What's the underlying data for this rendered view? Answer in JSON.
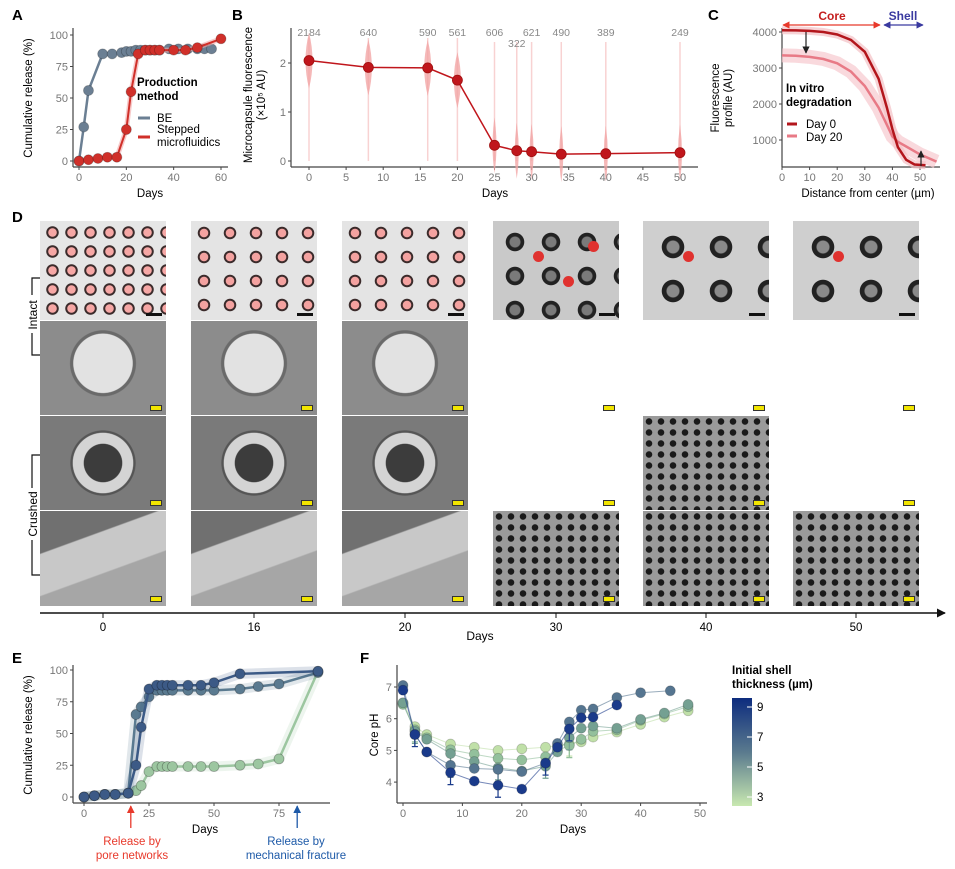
{
  "panels": {
    "A": "A",
    "B": "B",
    "C": "C",
    "D": "D",
    "E": "E",
    "F": "F"
  },
  "colors": {
    "be": "#6b7f93",
    "sm": "#d0302a",
    "sm_light": "#f2a6a6",
    "core": "#e8392b",
    "shell": "#3a3aa0",
    "day0": "#b3161c",
    "day20": "#e87a86",
    "pore": "#e8392b",
    "fracture": "#1e5aa8",
    "grad_top": "#0d2c7e",
    "grad_bottom": "#c8e8b0"
  },
  "chart_data": [
    {
      "id": "A",
      "type": "line",
      "xlabel": "Days",
      "ylabel": "Cumulative release (%)",
      "xlim": [
        0,
        60
      ],
      "ylim": [
        0,
        100
      ],
      "xticks": [
        0,
        20,
        40,
        60
      ],
      "yticks": [
        0,
        25,
        50,
        75,
        100
      ],
      "legend": {
        "title": [
          "Production",
          "method"
        ],
        "position": "right",
        "entries": [
          "BE",
          "Stepped",
          "microfluidics"
        ]
      },
      "series": [
        {
          "name": "BE",
          "x": [
            0,
            2,
            4,
            10,
            14,
            18,
            20,
            22,
            24,
            26,
            28,
            30,
            32,
            34,
            38,
            42,
            46,
            50,
            53,
            56
          ],
          "y": [
            0,
            27,
            56,
            85,
            85,
            86,
            87,
            87,
            88,
            88,
            88,
            88,
            88,
            88,
            89,
            89,
            89,
            89,
            89,
            89
          ]
        },
        {
          "name": "Stepped microfluidics",
          "x": [
            0,
            4,
            8,
            12,
            16,
            20,
            22,
            25,
            28,
            30,
            32,
            34,
            40,
            45,
            50,
            60
          ],
          "y": [
            0,
            1,
            2,
            3,
            3,
            25,
            55,
            85,
            88,
            88,
            88,
            88,
            88,
            88,
            90,
            97
          ]
        }
      ]
    },
    {
      "id": "B",
      "type": "line",
      "xlabel": "Days",
      "ylabel": [
        "Microcapsule fluorescence",
        "(×10⁵ AU)"
      ],
      "xlim": [
        0,
        50
      ],
      "ylim": [
        0,
        2.5
      ],
      "xticks": [
        0,
        5,
        10,
        15,
        20,
        25,
        30,
        35,
        40,
        45,
        50
      ],
      "yticks": [
        0,
        1,
        2
      ],
      "x": [
        0,
        8,
        16,
        20,
        25,
        28,
        30,
        34,
        40,
        50
      ],
      "y": [
        2.05,
        1.91,
        1.9,
        1.65,
        0.32,
        0.21,
        0.19,
        0.14,
        0.15,
        0.17
      ],
      "counts": [
        "2184",
        "640",
        "590",
        "561",
        "606",
        "322",
        "621",
        "490",
        "389",
        "249"
      ]
    },
    {
      "id": "C",
      "type": "line",
      "xlabel": "Distance from center (µm)",
      "ylabel": [
        "Fluorescence",
        "profile (AU)"
      ],
      "xlim": [
        0,
        56
      ],
      "ylim": [
        250,
        4200
      ],
      "xticks": [
        0,
        10,
        20,
        30,
        40,
        50
      ],
      "yticks": [
        1000,
        2000,
        3000,
        4000
      ],
      "annotations": {
        "core": "Core",
        "shell": "Shell"
      },
      "legend": {
        "title": [
          "In vitro",
          "degradation"
        ],
        "position": "left",
        "entries": [
          "Day 0",
          "Day 20"
        ]
      },
      "series": [
        {
          "name": "Day 0",
          "x": [
            0,
            5,
            10,
            15,
            20,
            25,
            30,
            35,
            38,
            40,
            42,
            45,
            48,
            52
          ],
          "y": [
            4050,
            4045,
            4030,
            4000,
            3930,
            3780,
            3450,
            2700,
            1900,
            1300,
            800,
            450,
            320,
            300
          ]
        },
        {
          "name": "Day 20",
          "x": [
            0,
            5,
            10,
            15,
            20,
            25,
            30,
            35,
            40,
            42,
            45,
            50,
            56
          ],
          "y": [
            3350,
            3340,
            3310,
            3250,
            3130,
            2900,
            2500,
            1900,
            1100,
            950,
            820,
            600,
            400
          ]
        }
      ]
    },
    {
      "id": "E",
      "type": "line",
      "xlabel": "Days",
      "ylabel": "Cumulative release (%)",
      "xlim": [
        0,
        90
      ],
      "ylim": [
        0,
        100
      ],
      "xticks": [
        0,
        25,
        50,
        75
      ],
      "yticks": [
        0,
        25,
        50,
        75,
        100
      ],
      "annotations": {
        "pore": [
          "Release by",
          "pore networks"
        ],
        "fracture": [
          "Release by",
          "mechanical fracture"
        ],
        "pore_day": 18,
        "fracture_day": 82
      },
      "series": [
        {
          "name": "thick",
          "color": "#3c5a86",
          "x": [
            0,
            4,
            8,
            12,
            17,
            20,
            22,
            25,
            28,
            30,
            32,
            34,
            40,
            45,
            50,
            60,
            90
          ],
          "y": [
            0,
            1,
            2,
            2,
            3,
            25,
            55,
            85,
            88,
            88,
            88,
            88,
            88,
            88,
            90,
            97,
            99
          ]
        },
        {
          "name": "medium",
          "color": "#5a7a90",
          "x": [
            0,
            4,
            8,
            12,
            17,
            20,
            22,
            25,
            28,
            30,
            32,
            34,
            40,
            45,
            50,
            60,
            67,
            75,
            90
          ],
          "y": [
            0,
            1,
            2,
            2,
            3,
            65,
            71,
            79,
            84,
            84,
            84,
            84,
            84,
            84,
            84,
            85,
            87,
            89,
            98
          ]
        },
        {
          "name": "thin",
          "color": "#9cc6a0",
          "x": [
            0,
            4,
            8,
            12,
            17,
            20,
            22,
            25,
            28,
            30,
            32,
            34,
            40,
            45,
            50,
            60,
            67,
            75,
            90
          ],
          "y": [
            0,
            1,
            2,
            2,
            3,
            5,
            9,
            20,
            24,
            24,
            24,
            24,
            24,
            24,
            24,
            25,
            26,
            30,
            99
          ]
        }
      ]
    },
    {
      "id": "F",
      "type": "line",
      "xlabel": "Days",
      "ylabel": "Core pH",
      "xlim": [
        0,
        50
      ],
      "ylim": [
        3.4,
        7.6
      ],
      "xticks": [
        0,
        10,
        20,
        30,
        40,
        50
      ],
      "yticks": [
        4,
        5,
        6,
        7
      ],
      "legend": {
        "title": [
          "Initial shell",
          "thickness (µm)"
        ],
        "position": "right",
        "ticks": [
          "9",
          "7",
          "5",
          "3"
        ]
      },
      "series": [
        {
          "name": "9",
          "color": "#1a3a8a",
          "x": [
            0,
            2,
            4,
            8,
            12,
            16,
            20,
            24,
            26,
            28,
            30,
            32,
            36
          ],
          "y": [
            6.9,
            5.5,
            4.95,
            4.3,
            4.03,
            3.9,
            3.78,
            4.6,
            5.1,
            5.68,
            6.03,
            6.05,
            6.43
          ]
        },
        {
          "name": "7",
          "color": "#557590",
          "x": [
            0,
            2,
            4,
            8,
            12,
            16,
            20,
            24,
            26,
            28,
            30,
            32,
            36,
            40,
            45
          ],
          "y": [
            7.05,
            5.5,
            4.95,
            4.53,
            4.43,
            4.4,
            4.33,
            4.6,
            5.22,
            5.9,
            6.27,
            6.31,
            6.67,
            6.82,
            6.88
          ]
        },
        {
          "name": "5.5",
          "color": "#74a092",
          "x": [
            0,
            2,
            4,
            8,
            12,
            16,
            20,
            24,
            26,
            28,
            30,
            32,
            36,
            40,
            44,
            48
          ],
          "y": [
            6.5,
            5.6,
            5.35,
            4.9,
            4.65,
            4.45,
            4.35,
            4.5,
            4.95,
            5.4,
            5.7,
            5.77,
            5.7,
            5.98,
            6.18,
            6.45
          ]
        },
        {
          "name": "4.5",
          "color": "#93c09c",
          "x": [
            0,
            2,
            4,
            8,
            12,
            16,
            20,
            24,
            26,
            28,
            30,
            32,
            36,
            40,
            44,
            48
          ],
          "y": [
            6.45,
            5.65,
            5.4,
            5.02,
            4.88,
            4.75,
            4.7,
            4.8,
            5.0,
            5.15,
            5.35,
            5.6,
            5.65,
            5.95,
            6.15,
            6.38
          ]
        },
        {
          "name": "3",
          "color": "#c0e0a8",
          "x": [
            0,
            2,
            4,
            8,
            12,
            16,
            20,
            24,
            26,
            28,
            30,
            32,
            36,
            40,
            44,
            48
          ],
          "y": [
            6.5,
            5.75,
            5.5,
            5.2,
            5.1,
            5.0,
            5.05,
            5.1,
            5.15,
            5.2,
            5.27,
            5.42,
            5.58,
            5.82,
            6.05,
            6.25
          ]
        }
      ]
    }
  ],
  "D": {
    "rows": {
      "intact": "Intact",
      "crushed": "Crushed"
    },
    "days": [
      "0",
      "16",
      "20",
      "30",
      "40",
      "50"
    ],
    "xlabel": "Days"
  }
}
